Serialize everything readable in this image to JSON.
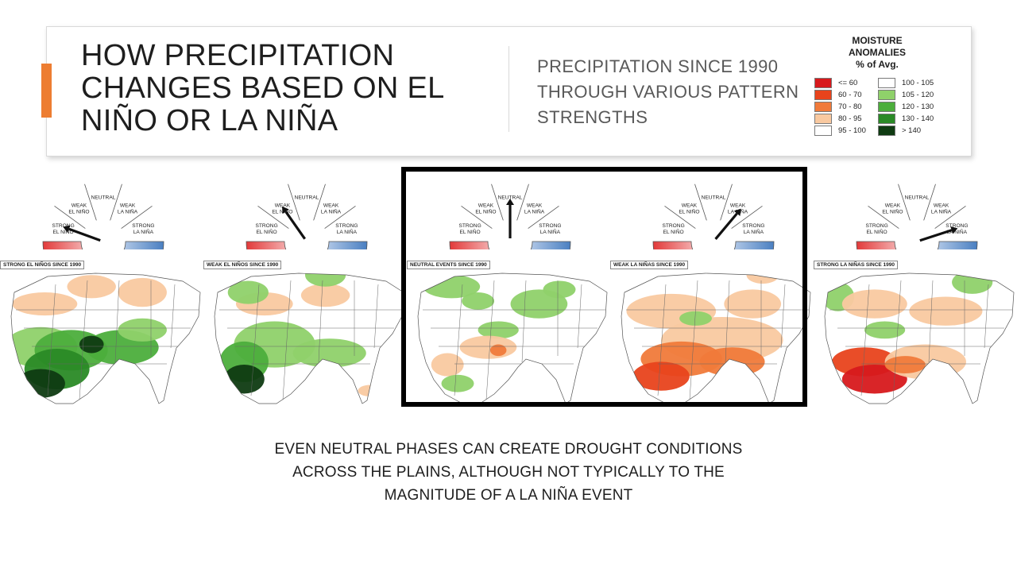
{
  "header": {
    "title_lines": [
      "HOW PRECIPITATION",
      "CHANGES BASED ON EL",
      "NIÑO OR LA NIÑA"
    ],
    "subtitle_lines": [
      "PRECIPITATION SINCE 1990",
      "THROUGH VARIOUS PATTERN",
      "STRENGTHS"
    ]
  },
  "legend": {
    "title_lines": [
      "MOISTURE",
      "ANOMALIES",
      "% of Avg."
    ],
    "items_left": [
      {
        "label": "<= 60",
        "color": "#d7191c"
      },
      {
        "label": "60 - 70",
        "color": "#e8431c"
      },
      {
        "label": "70 - 80",
        "color": "#f07a3a"
      },
      {
        "label": "80 - 95",
        "color": "#f9c9a0"
      },
      {
        "label": "95 - 100",
        "color": "#ffffff"
      }
    ],
    "items_right": [
      {
        "label": "100 - 105",
        "color": "#ffffff"
      },
      {
        "label": "105 - 120",
        "color": "#8fd16a"
      },
      {
        "label": "120 - 130",
        "color": "#4cae3c"
      },
      {
        "label": "130 - 140",
        "color": "#2a8a26"
      },
      {
        "label": "> 140",
        "color": "#0f3b12"
      }
    ]
  },
  "gauge_labels": {
    "strong_el_nino": [
      "STRONG",
      "EL NIÑO"
    ],
    "weak_el_nino": [
      "WEAK",
      "EL NIÑO"
    ],
    "neutral": [
      "NEUTRAL"
    ],
    "weak_la_nina": [
      "WEAK",
      "LA NIÑA"
    ],
    "strong_la_nina": [
      "STRONG",
      "LA NIÑA"
    ]
  },
  "panels": [
    {
      "map_label": "STRONG EL NIÑOS SINCE 1990",
      "needle": "strong_el_nino"
    },
    {
      "map_label": "WEAK EL NIÑOS SINCE 1990",
      "needle": "weak_el_nino"
    },
    {
      "map_label": "NEUTRAL EVENTS SINCE 1990",
      "needle": "neutral"
    },
    {
      "map_label": "WEAK LA NIÑAS SINCE 1990",
      "needle": "weak_la_nina"
    },
    {
      "map_label": "STRONG LA NIÑAS SINCE 1990",
      "needle": "strong_la_nina"
    }
  ],
  "caption_lines": [
    "EVEN NEUTRAL PHASES CAN CREATE DROUGHT CONDITIONS",
    "ACROSS THE PLAINS, ALTHOUGH NOT TYPICALLY TO THE",
    "MAGNITUDE OF A LA NIÑA EVENT"
  ],
  "colors": {
    "accent": "#ed7d31",
    "gauge_red": "#e23a3a",
    "gauge_blue": "#4a7fc1",
    "highlight": "#000000"
  }
}
